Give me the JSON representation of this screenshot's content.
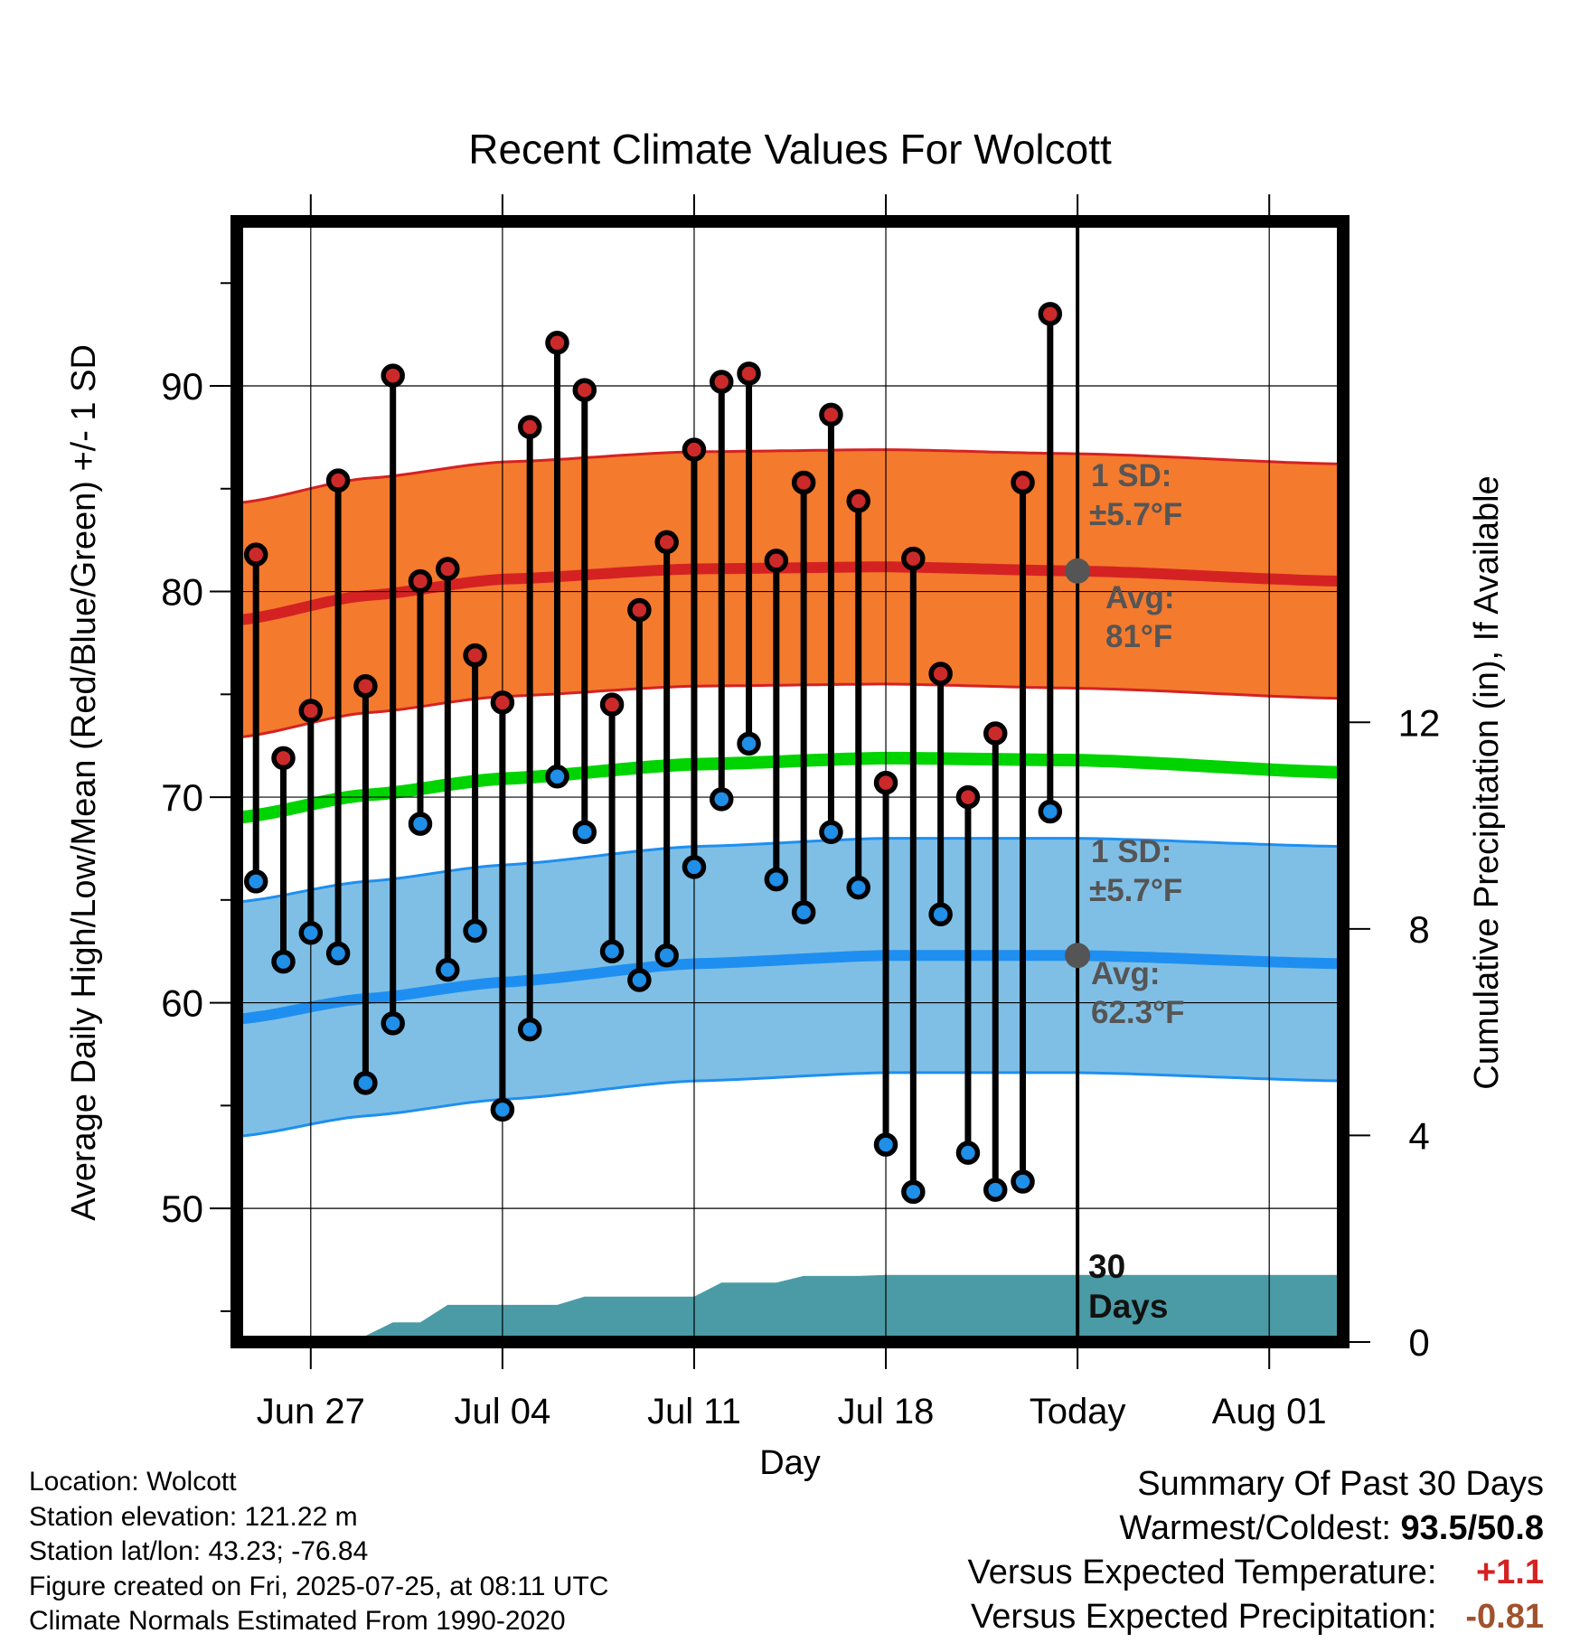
{
  "chart_data": {
    "type": "line",
    "title": "Recent Climate Values For Wolcott",
    "xlabel": "Day",
    "ylabel": "Average Daily High/Low/Mean (Red/Blue/Green) +/- 1 SD",
    "y2label": "Cumulative Precipitation (in), If Available",
    "ylim": [
      43.5,
      98
    ],
    "y2lim": [
      0,
      21.7
    ],
    "yticks": [
      "50",
      "60",
      "70",
      "80",
      "90"
    ],
    "y2ticks": [
      "0",
      "4",
      "8",
      "12"
    ],
    "y2tick_values": [
      0,
      4,
      8,
      12
    ],
    "xticks": [
      "Jun 27",
      "Jul 04",
      "Jul 11",
      "Jul 18",
      "Today",
      "Aug 01"
    ],
    "xtick_values": [
      0,
      7,
      14,
      21,
      28,
      35
    ],
    "xlim": [
      -2.7,
      37.7
    ],
    "grid": true,
    "today_x": 28,
    "colors": {
      "high_band": "#f47a2e",
      "high_avg": "#d42222",
      "low_band": "#7fbfe6",
      "low_avg": "#1e8ff0",
      "mean": "#00d400",
      "precip": "#4a9ba6",
      "high_marker": "#cc2a2a",
      "low_marker": "#1f8fe8",
      "annotation": "#555555"
    },
    "normals": {
      "x": [
        -2.7,
        2,
        7,
        14,
        21,
        28,
        37.7
      ],
      "high_avg": [
        78.6,
        79.8,
        80.6,
        81.1,
        81.2,
        81.0,
        80.5
      ],
      "high_sd": 5.7,
      "low_avg": [
        59.2,
        60.2,
        61.0,
        61.9,
        62.3,
        62.3,
        61.9
      ],
      "low_sd": 5.7,
      "mean": [
        69.0,
        70.1,
        70.9,
        71.6,
        71.9,
        71.8,
        71.2
      ]
    },
    "series": [
      {
        "name": "High",
        "x": [
          -2,
          -1,
          0,
          1,
          2,
          3,
          4,
          5,
          6,
          7,
          8,
          9,
          10,
          11,
          12,
          13,
          14,
          15,
          16,
          17,
          18,
          19,
          20,
          21,
          22,
          23,
          24,
          25,
          26,
          27
        ],
        "values": [
          81.8,
          71.9,
          74.2,
          85.4,
          75.4,
          90.5,
          80.5,
          81.1,
          76.9,
          74.6,
          88.0,
          92.1,
          89.8,
          74.5,
          79.1,
          82.4,
          86.9,
          90.2,
          90.6,
          81.5,
          85.3,
          88.6,
          84.4,
          70.7,
          81.6,
          76.0,
          70.0,
          73.1,
          85.3,
          93.5
        ]
      },
      {
        "name": "Low",
        "x": [
          -2,
          -1,
          0,
          1,
          2,
          3,
          4,
          5,
          6,
          7,
          8,
          9,
          10,
          11,
          12,
          13,
          14,
          15,
          16,
          17,
          18,
          19,
          20,
          21,
          22,
          23,
          24,
          25,
          26,
          27
        ],
        "values": [
          65.9,
          62.0,
          63.4,
          62.4,
          56.1,
          59.0,
          68.7,
          61.6,
          63.5,
          54.8,
          58.7,
          71.0,
          68.3,
          62.5,
          61.1,
          62.3,
          66.6,
          69.9,
          72.6,
          66.0,
          64.4,
          68.3,
          65.6,
          53.1,
          50.8,
          64.3,
          52.7,
          50.9,
          51.3,
          69.3
        ]
      }
    ],
    "precip": {
      "x": [
        -2.7,
        2,
        3,
        4,
        5,
        6,
        7,
        8,
        9,
        10,
        11,
        12,
        13,
        14,
        15,
        16,
        17,
        18,
        19,
        20,
        21,
        37.7
      ],
      "values": [
        0.0,
        0.12,
        0.38,
        0.38,
        0.72,
        0.72,
        0.72,
        0.72,
        0.72,
        0.88,
        0.88,
        0.88,
        0.88,
        0.88,
        1.15,
        1.15,
        1.15,
        1.28,
        1.28,
        1.28,
        1.3,
        1.3
      ]
    },
    "annotations": {
      "high_sd_line1": "1 SD:",
      "high_sd_line2": "±5.7°F",
      "high_avg_line1": "Avg:",
      "high_avg_line2": "81°F",
      "low_sd_line1": "1 SD:",
      "low_sd_line2": "±5.7°F",
      "low_avg_line1": "Avg:",
      "low_avg_line2": "62.3°F",
      "days_line1": "30",
      "days_line2": "Days"
    }
  },
  "footer": {
    "location": "Location: Wolcott",
    "elevation": "Station elevation: 121.22 m",
    "latlon": "Station lat/lon: 43.23; -76.84",
    "created": "Figure created on Fri, 2025-07-25, at 08:11 UTC",
    "normals": "Climate Normals Estimated From 1990-2020"
  },
  "summary": {
    "title": "Summary Of Past 30 Days",
    "warm_cold_label": "Warmest/Coldest:",
    "warm_cold_value": "93.5/50.8",
    "temp_label": "Versus Expected Temperature:",
    "temp_value": "+1.1",
    "temp_color": "#d42222",
    "precip_label": "Versus Expected Precipitation:",
    "precip_value": "-0.81",
    "precip_color": "#a0522d"
  }
}
